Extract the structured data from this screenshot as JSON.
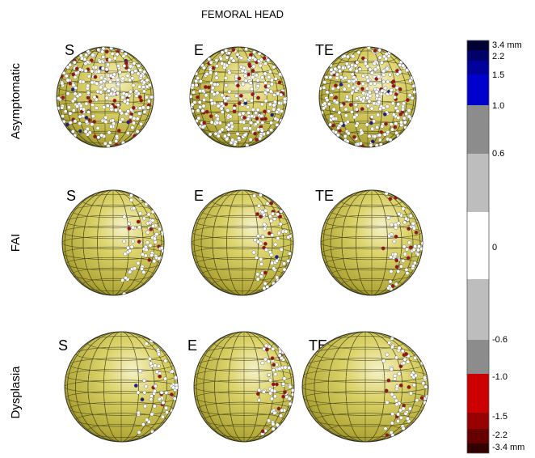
{
  "title": "FEMORAL HEAD",
  "rows": [
    {
      "label": "Asymptomatic",
      "columns": [
        "S",
        "E",
        "TE"
      ]
    },
    {
      "label": "FAI",
      "columns": [
        "S",
        "E",
        "TE"
      ]
    },
    {
      "label": "Dysplasia",
      "columns": [
        "S",
        "E",
        "TE"
      ]
    }
  ],
  "colorbar": {
    "labels": [
      "3.4 mm",
      "2.2",
      "1.5",
      "1.0",
      "0.6",
      "0",
      "-0.6",
      "-1.0",
      "-1.5",
      "-2.2",
      "-3.4 mm"
    ]
  }
}
